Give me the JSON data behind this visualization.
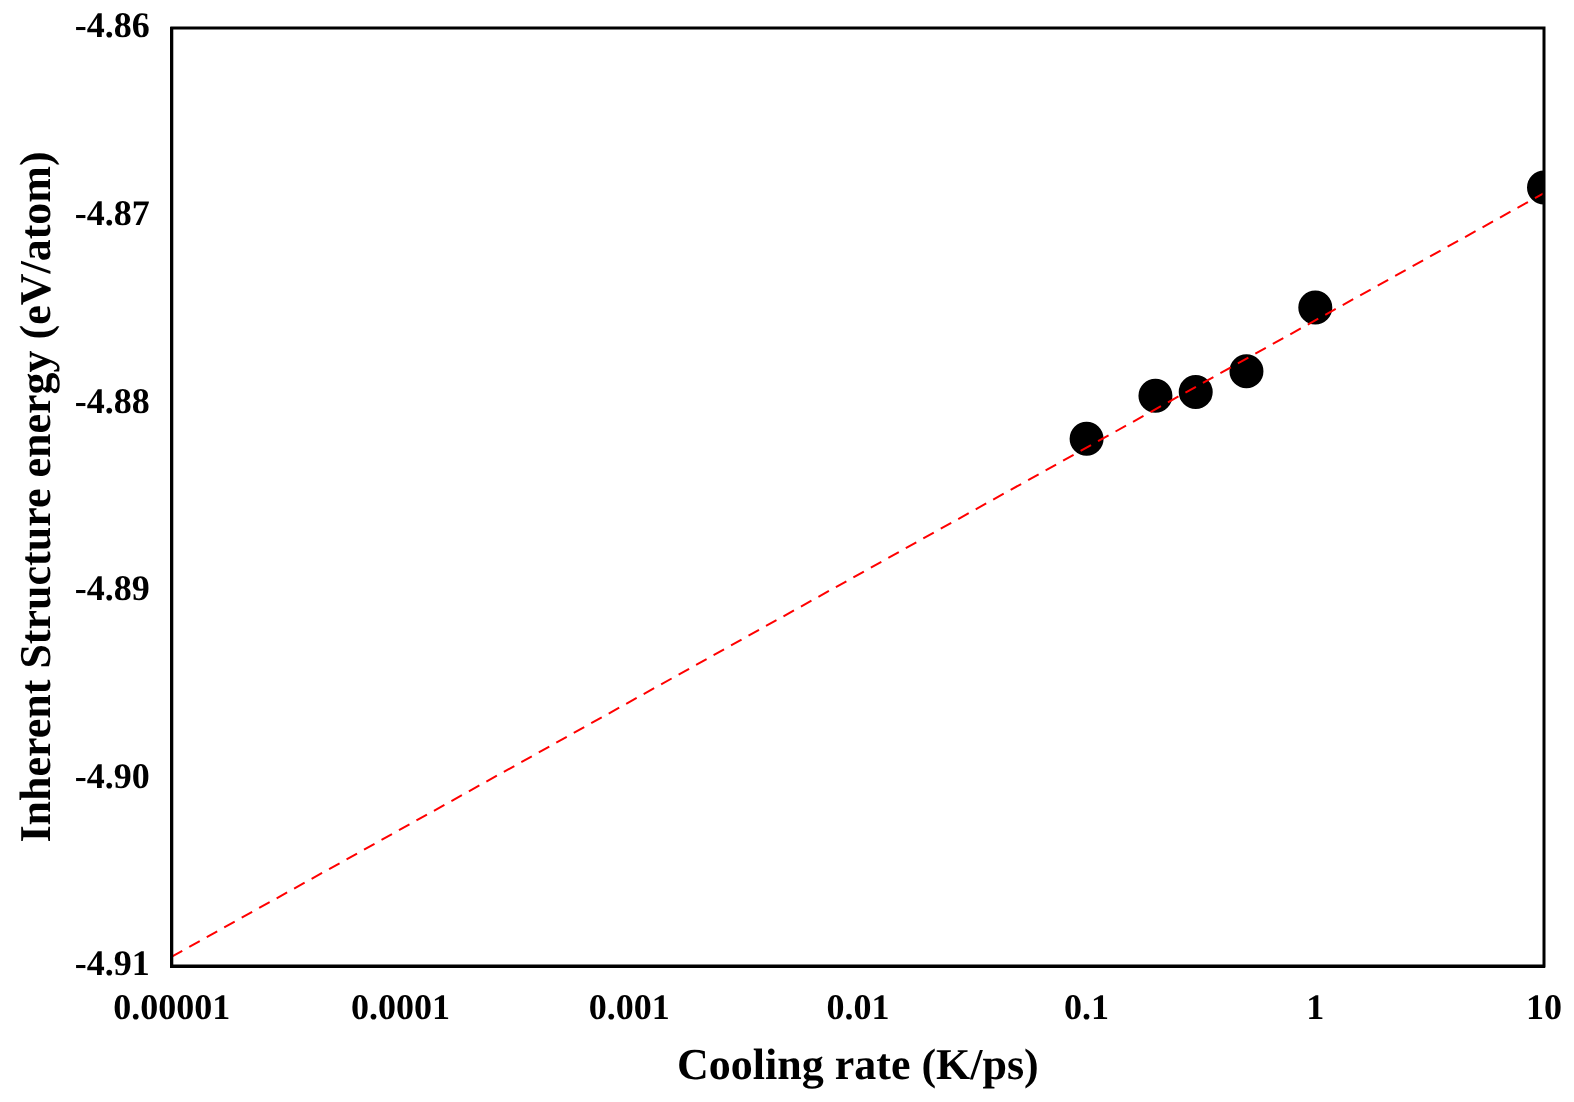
{
  "chart_data": {
    "type": "scatter",
    "xlabel": "Cooling rate (K/ps)",
    "ylabel": "Inherent Structure energy (eV/atom)",
    "log": "x",
    "xlim": [
      1e-05,
      10
    ],
    "xticks": [
      {
        "value": 1e-05,
        "label": "0.00001"
      },
      {
        "value": 0.0001,
        "label": "0.0001"
      },
      {
        "value": 0.001,
        "label": "0.001"
      },
      0.01,
      0.1,
      1,
      10
    ],
    "ylim": [
      -4.91,
      -4.86
    ],
    "yticks": [
      -4.91,
      {
        "value": -4.9,
        "label": "-4.90"
      },
      -4.89,
      -4.88,
      -4.87,
      -4.86
    ],
    "grid": false,
    "legend": false,
    "marker": "circle",
    "series": [
      {
        "color": "#000000",
        "x": [
          0.1,
          0.2,
          0.3,
          0.5,
          1,
          10
        ],
        "values": [
          -4.8819,
          -4.8796,
          -4.8794,
          -4.8783,
          -4.8749,
          -4.8685
        ]
      },
      {
        "type": "line",
        "color": "#ff0000",
        "line_style": "dashed",
        "marker": "none",
        "x": [
          1e-05,
          10
        ],
        "values": [
          -4.9095,
          -4.8688
        ]
      }
    ]
  }
}
